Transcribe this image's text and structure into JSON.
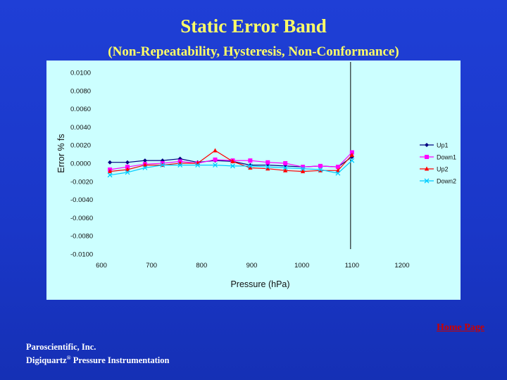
{
  "slide": {
    "title": "Static Error Band",
    "subtitle": "(Non-Repeatability, Hysteresis, Non-Conformance)",
    "home_link": "Home Page",
    "footer_company": "Paroscientific, Inc.",
    "footer_product": "Digiquartz",
    "footer_reg": "®",
    "footer_product_rest": " Pressure Instrumentation"
  },
  "colors": {
    "background": "#1a37c8",
    "title": "#ffff66",
    "chart_bg": "#ccffff",
    "link": "#cc0000"
  },
  "chart_data": {
    "type": "line",
    "title": "",
    "xlabel": "Pressure (hPa)",
    "ylabel": "Error % fs",
    "xlim": [
      600,
      1200
    ],
    "ylim": [
      -0.01,
      0.01
    ],
    "x_ticks": [
      600,
      700,
      800,
      900,
      1000,
      1100,
      1200
    ],
    "x_tick_labels": [
      "600",
      "700",
      "800",
      "900",
      "1000",
      "1100",
      "1200"
    ],
    "y_ticks": [
      0.01,
      0.008,
      0.006,
      0.004,
      0.002,
      0.0,
      -0.002,
      -0.004,
      -0.006,
      -0.008,
      -0.01
    ],
    "y_tick_labels": [
      "0.0100",
      "0.0080",
      "0.0060",
      "0.0040",
      "0.0020",
      "0.0000",
      "-0.0020",
      "-0.0040",
      "-0.0060",
      "-0.0080",
      "-0.0100"
    ],
    "vline_x": 1100,
    "grid": false,
    "legend_position": "right",
    "x": [
      617,
      652,
      687,
      722,
      757,
      792,
      827,
      862,
      897,
      932,
      967,
      1002,
      1037,
      1072,
      1100
    ],
    "series": [
      {
        "name": "Up1",
        "color": "#000080",
        "marker": "diamond",
        "values": [
          0.0001,
          0.0001,
          0.0003,
          0.0003,
          0.0005,
          0.0001,
          0.0003,
          0.0002,
          -0.0002,
          -0.0002,
          -0.0003,
          -0.0004,
          -0.0003,
          -0.0004,
          0.0007
        ]
      },
      {
        "name": "Down1",
        "color": "#ff00ff",
        "marker": "square",
        "values": [
          -0.0007,
          -0.0004,
          -0.0001,
          0.0,
          0.0002,
          0.0,
          0.0004,
          0.0003,
          0.0003,
          0.0001,
          0.0,
          -0.0004,
          -0.0003,
          -0.0004,
          0.0012
        ]
      },
      {
        "name": "Up2",
        "color": "#ff0000",
        "marker": "triangle",
        "values": [
          -0.0009,
          -0.0007,
          -0.0002,
          -0.0002,
          0.0,
          0.0,
          0.0014,
          0.0002,
          -0.0005,
          -0.0006,
          -0.0008,
          -0.0009,
          -0.0008,
          -0.0008,
          0.0009
        ]
      },
      {
        "name": "Down2",
        "color": "#00ccff",
        "marker": "x",
        "values": [
          -0.0013,
          -0.001,
          -0.0005,
          -0.0002,
          -0.0002,
          -0.0002,
          -0.0002,
          -0.0003,
          -0.0003,
          -0.0004,
          -0.0005,
          -0.0006,
          -0.0007,
          -0.0011,
          0.0003
        ]
      }
    ]
  }
}
